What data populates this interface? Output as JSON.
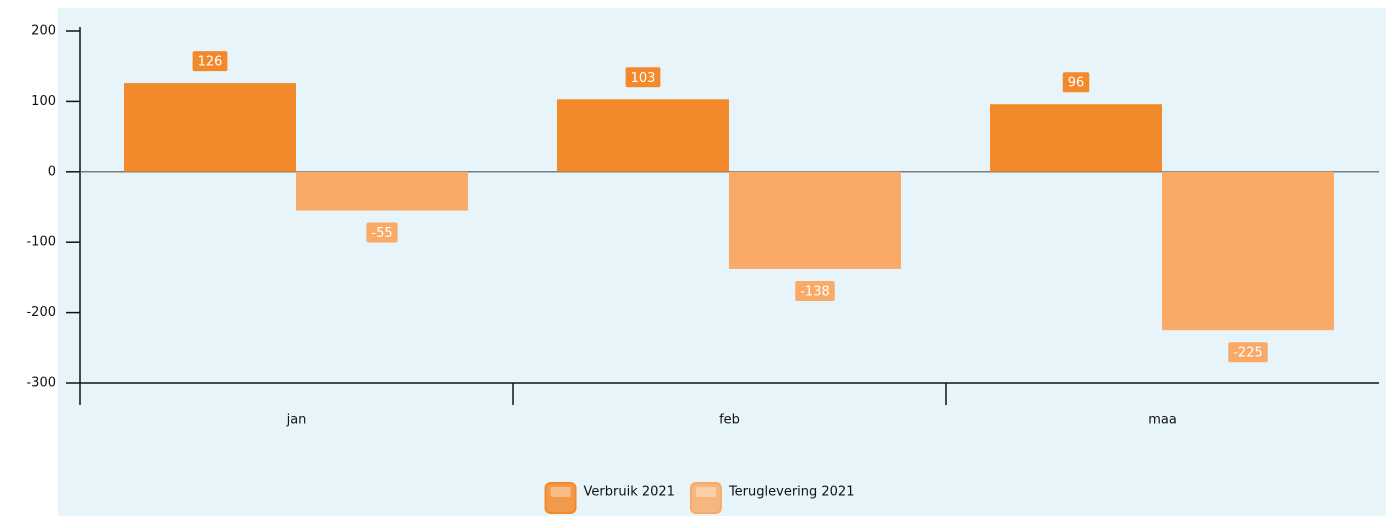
{
  "chart_data": {
    "type": "bar",
    "categories": [
      "jan",
      "feb",
      "maa"
    ],
    "series": [
      {
        "name": "Verbruik 2021",
        "color": "#f28a2c",
        "values": [
          126,
          103,
          96
        ]
      },
      {
        "name": "Teruglevering 2021",
        "color": "#f9aa66",
        "values": [
          -55,
          -138,
          -225
        ]
      }
    ],
    "ylim": [
      -300,
      200
    ],
    "yticks": [
      -300,
      -200,
      -100,
      0,
      100,
      200
    ],
    "legend": "bottom"
  }
}
